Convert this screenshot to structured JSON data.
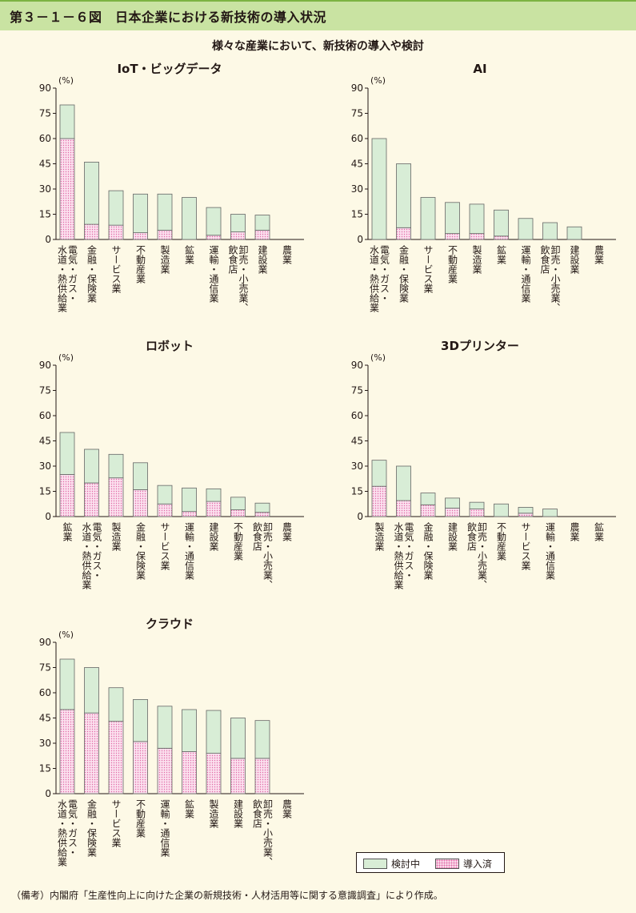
{
  "page": {
    "title": "第３－１－６図　日本企業における新技術の導入状況",
    "subtitle": "様々な産業において、新技術の導入や検討",
    "note": "（備考）内閣府「生産性向上に向けた企業の新規技術・人材活用等に関する意識調査」により作成。"
  },
  "legend": {
    "considering": "検討中",
    "adopted": "導入済"
  },
  "colors": {
    "considering": "#d8edd6",
    "adopted": "#fbe0ee",
    "dots": "#e06aa6",
    "title_bar": "#c9e3a2",
    "background": "#fdf9e6"
  },
  "chart_data": [
    {
      "type": "bar",
      "stacked": true,
      "title": "IoT・ビッグデータ",
      "ylabel": "(%)",
      "ylim": [
        0,
        90
      ],
      "yticks": [
        0,
        15,
        30,
        45,
        60,
        75,
        90
      ],
      "categories": [
        "電気・ガス・水道・熱供給業",
        "金融・保険業",
        "サービス業",
        "不動産業",
        "製造業",
        "鉱業",
        "運輸・通信業",
        "卸売・小売業、飲食店",
        "建設業",
        "農業"
      ],
      "category_labels": [
        [
          "電気・ガス・",
          "水道・熱供給業"
        ],
        [
          "金融・保険業"
        ],
        [
          "サービス業"
        ],
        [
          "不動産業"
        ],
        [
          "製造業"
        ],
        [
          "鉱業"
        ],
        [
          "運輸・通信業"
        ],
        [
          "卸売・小売業、",
          "飲食店"
        ],
        [
          "建設業"
        ],
        [
          "農業"
        ]
      ],
      "series": [
        {
          "name": "導入済",
          "values": [
            60,
            9,
            8.5,
            4,
            5.5,
            0,
            2.5,
            4.5,
            5.5,
            0
          ]
        },
        {
          "name": "検討中",
          "values": [
            20,
            37,
            20.5,
            23,
            21.5,
            25,
            16.5,
            10.5,
            9,
            0
          ]
        }
      ]
    },
    {
      "type": "bar",
      "stacked": true,
      "title": "AI",
      "ylabel": "(%)",
      "ylim": [
        0,
        90
      ],
      "yticks": [
        0,
        15,
        30,
        45,
        60,
        75,
        90
      ],
      "categories": [
        "電気・ガス・水道・熱供給業",
        "金融・保険業",
        "サービス業",
        "不動産業",
        "製造業",
        "鉱業",
        "運輸・通信業",
        "卸売・小売業、飲食店",
        "建設業",
        "農業"
      ],
      "category_labels": [
        [
          "電気・ガス・",
          "水道・熱供給業"
        ],
        [
          "金融・保険業"
        ],
        [
          "サービス業"
        ],
        [
          "不動産業"
        ],
        [
          "製造業"
        ],
        [
          "鉱業"
        ],
        [
          "運輸・通信業"
        ],
        [
          "卸売・小売業、",
          "飲食店"
        ],
        [
          "建設業"
        ],
        [
          "農業"
        ]
      ],
      "series": [
        {
          "name": "導入済",
          "values": [
            0,
            7,
            0,
            3.5,
            3.5,
            2,
            0,
            0,
            0,
            0
          ]
        },
        {
          "name": "検討中",
          "values": [
            60,
            38,
            25,
            18.5,
            17.5,
            15.5,
            12.5,
            10,
            7.5,
            0
          ]
        }
      ]
    },
    {
      "type": "bar",
      "stacked": true,
      "title": "ロボット",
      "ylabel": "(%)",
      "ylim": [
        0,
        90
      ],
      "yticks": [
        0,
        15,
        30,
        45,
        60,
        75,
        90
      ],
      "categories": [
        "鉱業",
        "電気・ガス・水道・熱供給業",
        "製造業",
        "金融・保険業",
        "サービス業",
        "運輸・通信業",
        "建設業",
        "不動産業",
        "卸売・小売業、飲食店",
        "農業"
      ],
      "category_labels": [
        [
          "鉱業"
        ],
        [
          "電気・ガス・",
          "水道・熱供給業"
        ],
        [
          "製造業"
        ],
        [
          "金融・保険業"
        ],
        [
          "サービス業"
        ],
        [
          "運輸・通信業"
        ],
        [
          "建設業"
        ],
        [
          "不動産業"
        ],
        [
          "卸売・小売業、",
          "飲食店"
        ],
        [
          "農業"
        ]
      ],
      "series": [
        {
          "name": "導入済",
          "values": [
            25,
            20,
            23,
            16,
            7.5,
            3,
            9,
            4,
            2.5,
            0
          ]
        },
        {
          "name": "検討中",
          "values": [
            25,
            20,
            14,
            16,
            11,
            14,
            7.5,
            7.5,
            5.5,
            0
          ]
        }
      ]
    },
    {
      "type": "bar",
      "stacked": true,
      "title": "3Dプリンター",
      "ylabel": "(%)",
      "ylim": [
        0,
        90
      ],
      "yticks": [
        0,
        15,
        30,
        45,
        60,
        75,
        90
      ],
      "categories": [
        "製造業",
        "電気・ガス・水道・熱供給業",
        "金融・保険業",
        "建設業",
        "卸売・小売業、飲食店",
        "不動産業",
        "サービス業",
        "運輸・通信業",
        "農業",
        "鉱業"
      ],
      "category_labels": [
        [
          "製造業"
        ],
        [
          "電気・ガス・",
          "水道・熱供給業"
        ],
        [
          "金融・保険業"
        ],
        [
          "建設業"
        ],
        [
          "卸売・小売業、",
          "飲食店"
        ],
        [
          "不動産業"
        ],
        [
          "サービス業"
        ],
        [
          "運輸・通信業"
        ],
        [
          "農業"
        ],
        [
          "鉱業"
        ]
      ],
      "series": [
        {
          "name": "導入済",
          "values": [
            18,
            9.5,
            7,
            5,
            4.5,
            0,
            2,
            0,
            0,
            0
          ]
        },
        {
          "name": "検討中",
          "values": [
            15.5,
            20.5,
            7,
            6,
            4,
            7.5,
            3.5,
            4.5,
            0,
            0
          ]
        }
      ]
    },
    {
      "type": "bar",
      "stacked": true,
      "title": "クラウド",
      "ylabel": "(%)",
      "ylim": [
        0,
        90
      ],
      "yticks": [
        0,
        15,
        30,
        45,
        60,
        75,
        90
      ],
      "categories": [
        "電気・ガス・水道・熱供給業",
        "金融・保険業",
        "サービス業",
        "不動産業",
        "運輸・通信業",
        "鉱業",
        "製造業",
        "建設業",
        "卸売・小売業、飲食店",
        "農業"
      ],
      "category_labels": [
        [
          "電気・ガス・",
          "水道・熱供給業"
        ],
        [
          "金融・保険業"
        ],
        [
          "サービス業"
        ],
        [
          "不動産業"
        ],
        [
          "運輸・通信業"
        ],
        [
          "鉱業"
        ],
        [
          "製造業"
        ],
        [
          "建設業"
        ],
        [
          "卸売・小売業、",
          "飲食店"
        ],
        [
          "農業"
        ]
      ],
      "series": [
        {
          "name": "導入済",
          "values": [
            50,
            48,
            43,
            31,
            27,
            25,
            24,
            21,
            21,
            0
          ]
        },
        {
          "name": "検討中",
          "values": [
            30,
            27,
            20,
            25,
            25,
            25,
            25.5,
            24,
            22.5,
            0
          ]
        }
      ]
    }
  ]
}
